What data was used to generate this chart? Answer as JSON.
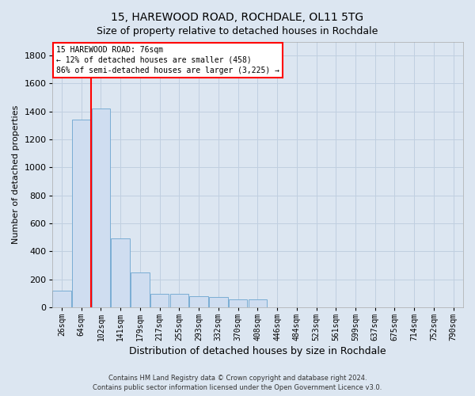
{
  "title1": "15, HAREWOOD ROAD, ROCHDALE, OL11 5TG",
  "title2": "Size of property relative to detached houses in Rochdale",
  "xlabel": "Distribution of detached houses by size in Rochdale",
  "ylabel": "Number of detached properties",
  "categories": [
    "26sqm",
    "64sqm",
    "102sqm",
    "141sqm",
    "179sqm",
    "217sqm",
    "255sqm",
    "293sqm",
    "332sqm",
    "370sqm",
    "408sqm",
    "446sqm",
    "484sqm",
    "523sqm",
    "561sqm",
    "599sqm",
    "637sqm",
    "675sqm",
    "714sqm",
    "752sqm",
    "790sqm"
  ],
  "values": [
    120,
    1340,
    1420,
    490,
    250,
    95,
    95,
    80,
    75,
    55,
    55,
    0,
    0,
    0,
    0,
    0,
    0,
    0,
    0,
    0,
    0
  ],
  "bar_color": "#cfddf0",
  "bar_edge_color": "#7aadd4",
  "vline_color": "red",
  "vline_x": 1.5,
  "annotation_line1": "15 HAREWOOD ROAD: 76sqm",
  "annotation_line2": "← 12% of detached houses are smaller (458)",
  "annotation_line3": "86% of semi-detached houses are larger (3,225) →",
  "annotation_box_color": "white",
  "annotation_box_edge": "red",
  "ylim": [
    0,
    1900
  ],
  "yticks": [
    0,
    200,
    400,
    600,
    800,
    1000,
    1200,
    1400,
    1600,
    1800
  ],
  "background_color": "#dce6f1",
  "grid_color": "#c0cfe0",
  "footer1": "Contains HM Land Registry data © Crown copyright and database right 2024.",
  "footer2": "Contains public sector information licensed under the Open Government Licence v3.0."
}
